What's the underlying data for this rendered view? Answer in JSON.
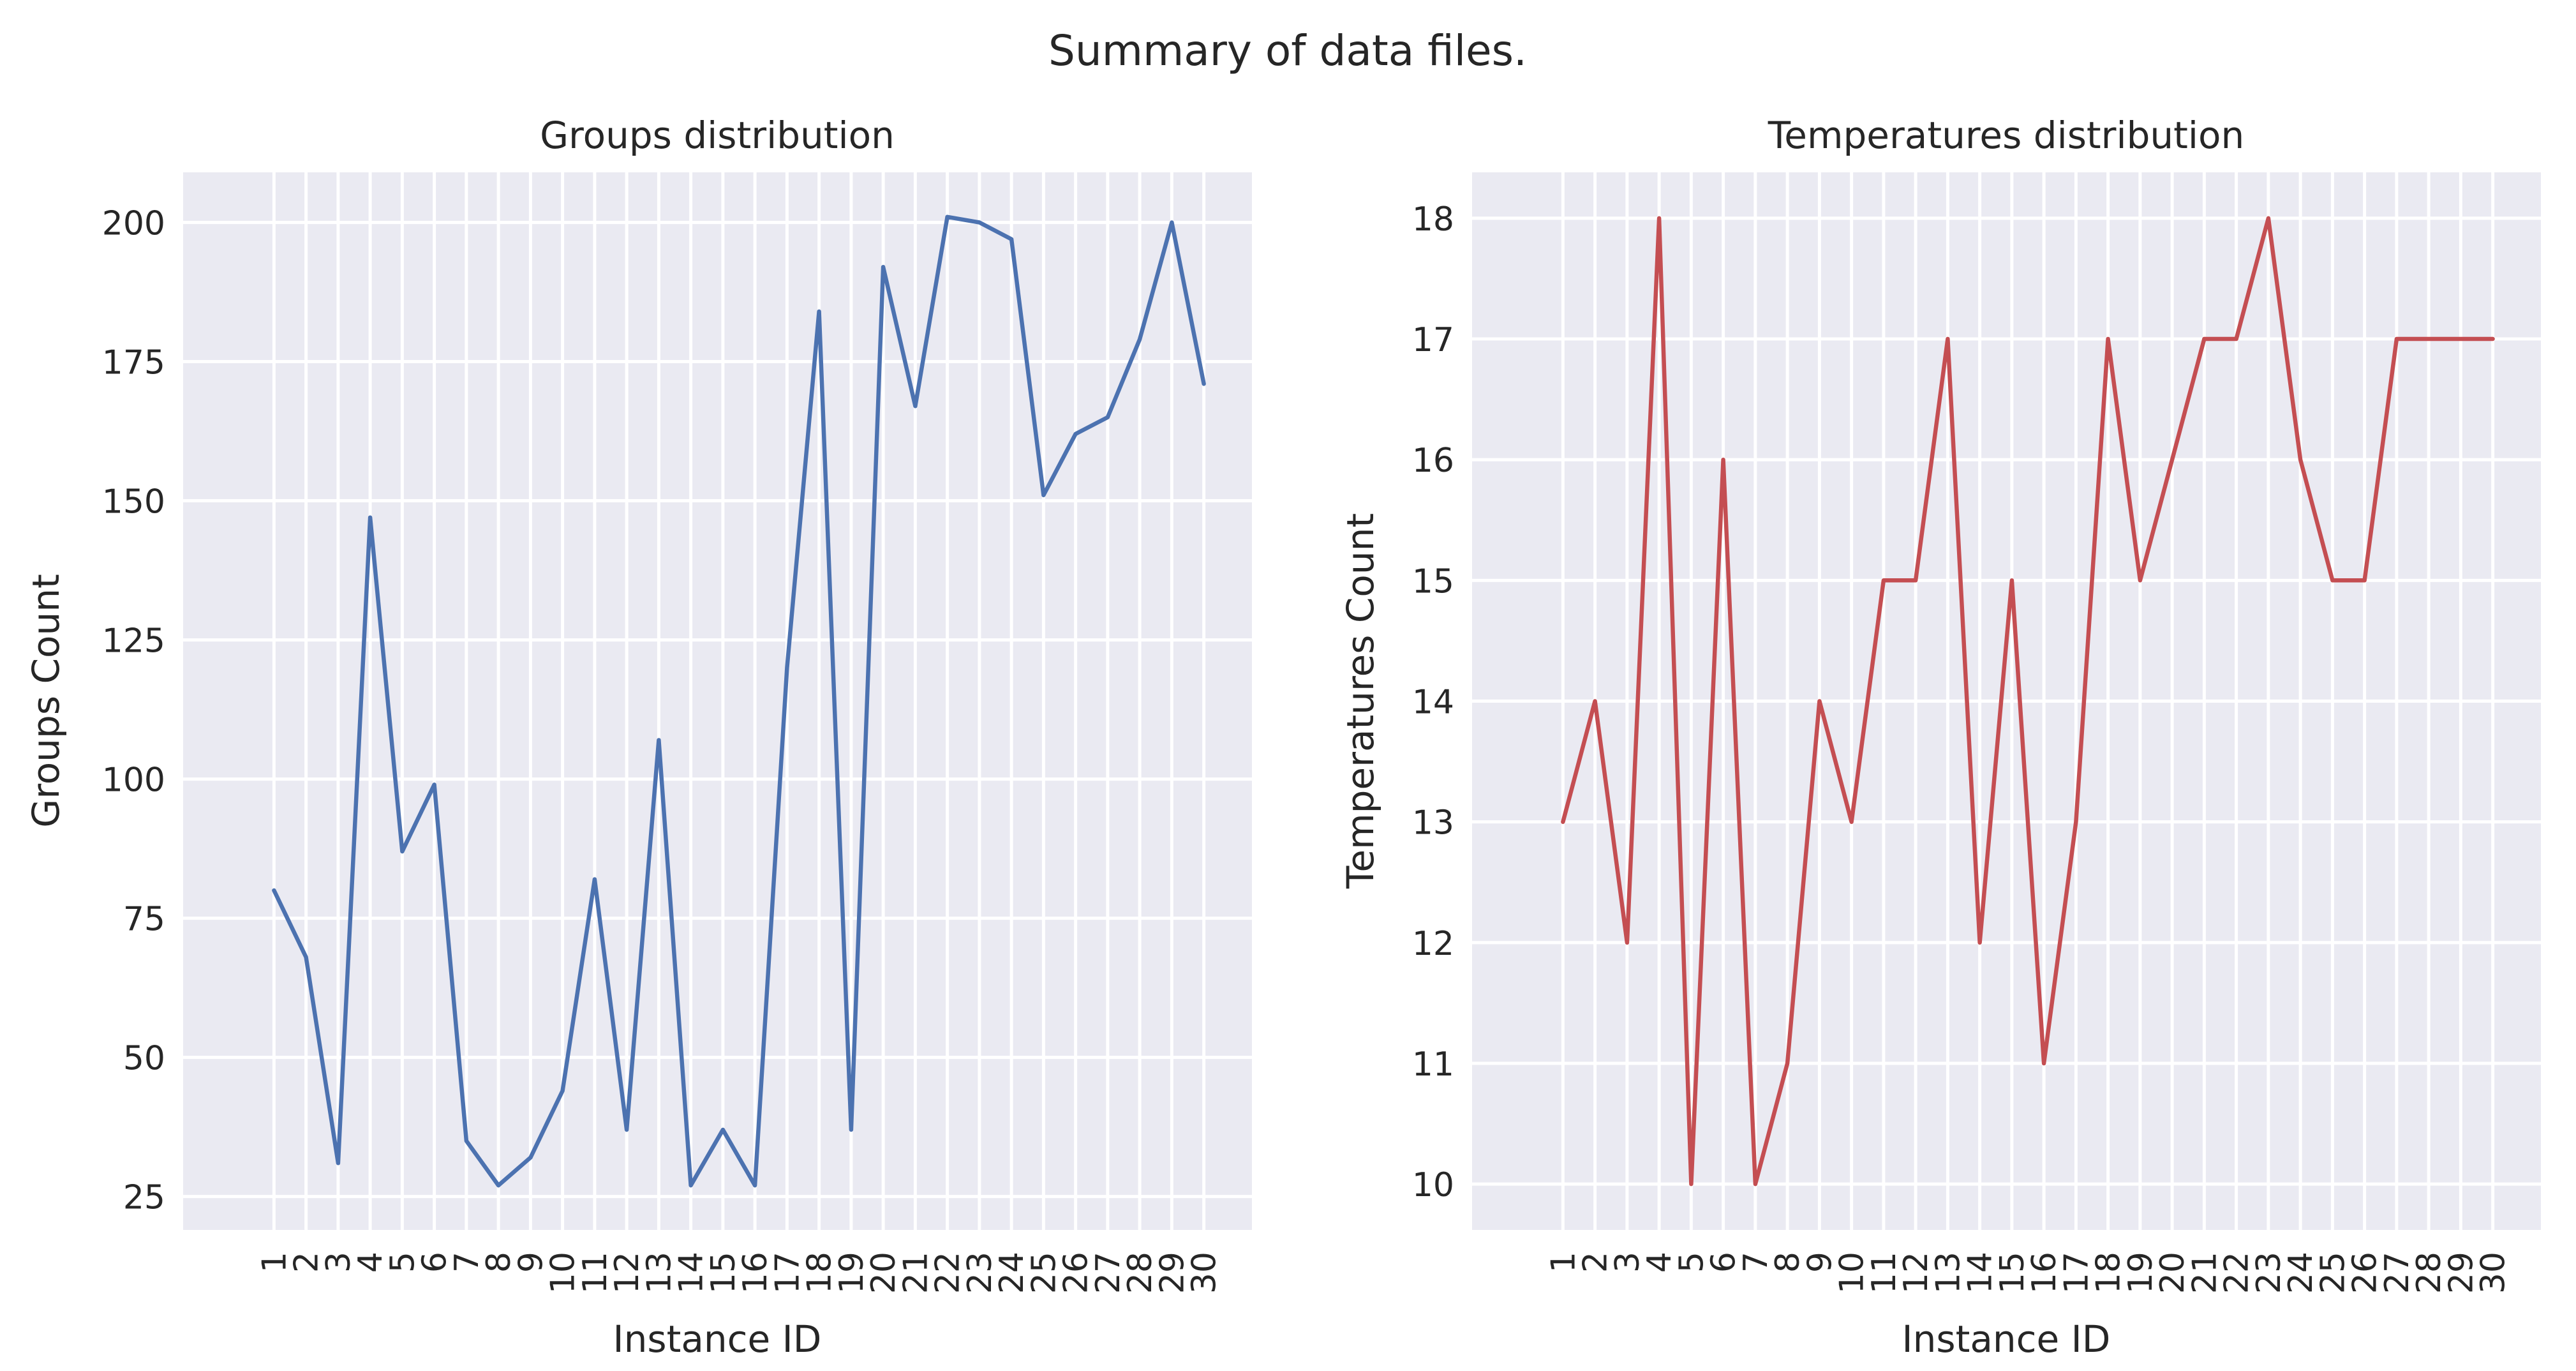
{
  "figure_title": "Summary of data files.",
  "chart_data": [
    {
      "type": "line",
      "title": "Groups distribution",
      "xlabel": "Instance ID",
      "ylabel": "Groups Count",
      "categories": [
        "1",
        "2",
        "3",
        "4",
        "5",
        "6",
        "7",
        "8",
        "9",
        "10",
        "11",
        "12",
        "13",
        "14",
        "15",
        "16",
        "17",
        "18",
        "19",
        "20",
        "21",
        "22",
        "23",
        "24",
        "25",
        "26",
        "27",
        "28",
        "29",
        "30"
      ],
      "values": [
        80,
        68,
        31,
        147,
        87,
        99,
        35,
        27,
        32,
        44,
        82,
        37,
        107,
        27,
        37,
        27,
        120,
        184,
        37,
        192,
        167,
        201,
        200,
        197,
        151,
        162,
        165,
        179,
        200,
        171
      ],
      "ylim": [
        19,
        209
      ],
      "yticks": [
        25,
        50,
        75,
        100,
        125,
        150,
        175,
        200
      ],
      "color": "#4c72b0",
      "grid": true
    },
    {
      "type": "line",
      "title": "Temperatures distribution",
      "xlabel": "Instance ID",
      "ylabel": "Temperatures Count",
      "categories": [
        "1",
        "2",
        "3",
        "4",
        "5",
        "6",
        "7",
        "8",
        "9",
        "10",
        "11",
        "12",
        "13",
        "14",
        "15",
        "16",
        "17",
        "18",
        "19",
        "20",
        "21",
        "22",
        "23",
        "24",
        "25",
        "26",
        "27",
        "28",
        "29",
        "30"
      ],
      "values": [
        13,
        14,
        12,
        18,
        10,
        16,
        10,
        11,
        14,
        13,
        15,
        15,
        17,
        12,
        15,
        11,
        13,
        17,
        15,
        16,
        17,
        17,
        18,
        16,
        15,
        15,
        17,
        17,
        17,
        17
      ],
      "ylim": [
        9.62,
        18.38
      ],
      "yticks": [
        10,
        11,
        12,
        13,
        14,
        15,
        16,
        17,
        18
      ],
      "color": "#c44e52",
      "grid": true
    }
  ]
}
